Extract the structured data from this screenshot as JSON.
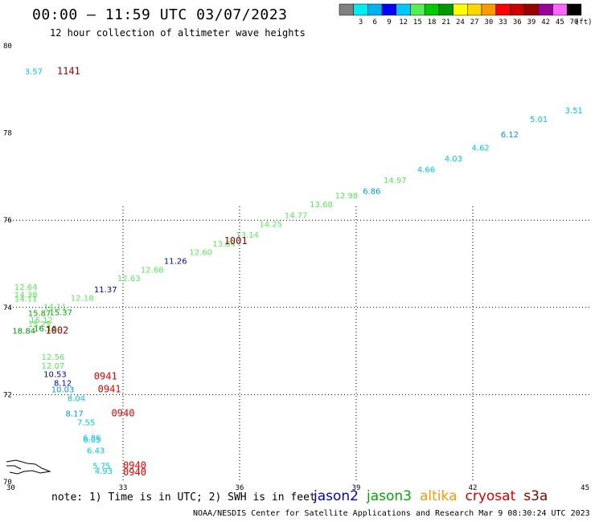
{
  "title": "00:00 – 11:59 UTC 03/07/2023",
  "subtitle": "12 hour collection of altimeter wave heights",
  "note": "note: 1) Time is in UTC; 2) SWH is in feet",
  "footer": "NOAA/NESDIS Center for Satellite Applications and Research    Mar  9 08:30:24 UTC 2023",
  "satellites": [
    {
      "name": "jason2",
      "color": "#0000dd"
    },
    {
      "name": "jason3",
      "color": "#00aa00"
    },
    {
      "name": "altika",
      "color": "#ff9900"
    },
    {
      "name": "cryosat",
      "color": "#dd0000"
    },
    {
      "name": "s3a",
      "color": "#880000"
    }
  ],
  "legend": {
    "unit": "(ft)",
    "bins": [
      {
        "label": "",
        "color": "#808080"
      },
      {
        "label": "3",
        "color": "#00eeee"
      },
      {
        "label": "6",
        "color": "#00b2ee"
      },
      {
        "label": "9",
        "color": "#0000ff"
      },
      {
        "label": "12",
        "color": "#00c8ff"
      },
      {
        "label": "15",
        "color": "#55ee55"
      },
      {
        "label": "18",
        "color": "#00cc00"
      },
      {
        "label": "21",
        "color": "#009900"
      },
      {
        "label": "24",
        "color": "#ffff00"
      },
      {
        "label": "27",
        "color": "#ffd700"
      },
      {
        "label": "30",
        "color": "#ff9900"
      },
      {
        "label": "33",
        "color": "#ff0000"
      },
      {
        "label": "36",
        "color": "#cc0000"
      },
      {
        "label": "39",
        "color": "#990000"
      },
      {
        "label": "42",
        "color": "#990099"
      },
      {
        "label": "45",
        "color": "#ff66ff"
      },
      {
        "label": "70",
        "color": "#000000"
      }
    ]
  },
  "chart_data": {
    "type": "scatter",
    "title": "00:00 – 11:59 UTC 03/07/2023",
    "x_ticks": [
      "30",
      "33",
      "36",
      "39",
      "42",
      "45"
    ],
    "y_ticks": [
      "70",
      "72",
      "74",
      "76",
      "78",
      "80"
    ],
    "xlim": [
      30,
      45
    ],
    "ylim": [
      70,
      80
    ],
    "grid": true,
    "points": [
      {
        "x": 30.7,
        "y": 79.35,
        "label": "3.57",
        "color": "#00c8e8"
      },
      {
        "x": 44.6,
        "y": 78.45,
        "label": "3.51",
        "color": "#00c8e8"
      },
      {
        "x": 43.7,
        "y": 78.25,
        "label": "5.01",
        "color": "#00c8e8"
      },
      {
        "x": 42.95,
        "y": 77.9,
        "label": "6.12",
        "color": "#0099dd"
      },
      {
        "x": 42.2,
        "y": 77.6,
        "label": "4.62",
        "color": "#00c8e8"
      },
      {
        "x": 41.5,
        "y": 77.35,
        "label": "4.03",
        "color": "#00c8e8"
      },
      {
        "x": 40.8,
        "y": 77.1,
        "label": "4.66",
        "color": "#00c8e8"
      },
      {
        "x": 40.0,
        "y": 76.85,
        "label": "14.97",
        "color": "#55ee55"
      },
      {
        "x": 39.4,
        "y": 76.6,
        "label": "6.86",
        "color": "#0099dd"
      },
      {
        "x": 38.75,
        "y": 76.5,
        "label": "12.98",
        "color": "#55ee55"
      },
      {
        "x": 38.1,
        "y": 76.3,
        "label": "13.68",
        "color": "#55ee55"
      },
      {
        "x": 37.45,
        "y": 76.05,
        "label": "14.77",
        "color": "#55ee55"
      },
      {
        "x": 36.8,
        "y": 75.85,
        "label": "14.25",
        "color": "#55ee55"
      },
      {
        "x": 36.2,
        "y": 75.6,
        "label": "13.14",
        "color": "#55ee55"
      },
      {
        "x": 35.6,
        "y": 75.4,
        "label": "13.84",
        "color": "#55ee55"
      },
      {
        "x": 35.0,
        "y": 75.2,
        "label": "12.60",
        "color": "#55ee55"
      },
      {
        "x": 34.35,
        "y": 75.0,
        "label": "11.26",
        "color": "#0000cc"
      },
      {
        "x": 33.75,
        "y": 74.8,
        "label": "12.68",
        "color": "#55ee55"
      },
      {
        "x": 33.15,
        "y": 74.6,
        "label": "12.63",
        "color": "#55ee55"
      },
      {
        "x": 32.55,
        "y": 74.35,
        "label": "11.37",
        "color": "#0000cc"
      },
      {
        "x": 31.95,
        "y": 74.15,
        "label": "12.18",
        "color": "#55ee55"
      },
      {
        "x": 31.25,
        "y": 73.95,
        "label": "14.11",
        "color": "#55ee55"
      },
      {
        "x": 30.5,
        "y": 74.4,
        "label": "12.64",
        "color": "#55ee55"
      },
      {
        "x": 30.5,
        "y": 74.23,
        "label": "14.38",
        "color": "#55ee55"
      },
      {
        "x": 30.5,
        "y": 74.13,
        "label": "14.11",
        "color": "#55ee55"
      },
      {
        "x": 30.85,
        "y": 73.8,
        "label": "15.87",
        "color": "#00aa00"
      },
      {
        "x": 31.4,
        "y": 73.82,
        "label": "15.37",
        "color": "#00aa00"
      },
      {
        "x": 30.9,
        "y": 73.65,
        "label": "16.12",
        "color": "#55ee55"
      },
      {
        "x": 30.85,
        "y": 73.55,
        "label": "15.25",
        "color": "#55ee55"
      },
      {
        "x": 30.45,
        "y": 73.4,
        "label": "18.84",
        "color": "#009900"
      },
      {
        "x": 31.0,
        "y": 73.45,
        "label": "16.16",
        "color": "#009900"
      },
      {
        "x": 31.2,
        "y": 72.8,
        "label": "12.56",
        "color": "#55ee55"
      },
      {
        "x": 31.2,
        "y": 72.6,
        "label": "12.07",
        "color": "#55ee55"
      },
      {
        "x": 31.25,
        "y": 72.4,
        "label": "10.53",
        "color": "#0000cc"
      },
      {
        "x": 31.45,
        "y": 72.2,
        "label": "8.12",
        "color": "#0000cc"
      },
      {
        "x": 31.45,
        "y": 72.05,
        "label": "10.03",
        "color": "#0099dd"
      },
      {
        "x": 31.8,
        "y": 71.85,
        "label": "8.04",
        "color": "#00c8e8"
      },
      {
        "x": 31.75,
        "y": 71.5,
        "label": "8.17",
        "color": "#0099dd"
      },
      {
        "x": 32.05,
        "y": 71.3,
        "label": "7.55",
        "color": "#00c8e8"
      },
      {
        "x": 32.2,
        "y": 70.95,
        "label": "6.86",
        "color": "#00c8e8"
      },
      {
        "x": 32.2,
        "y": 70.9,
        "label": "6.05",
        "color": "#00c8e8"
      },
      {
        "x": 32.3,
        "y": 70.65,
        "label": "6.43",
        "color": "#00c8e8"
      },
      {
        "x": 32.45,
        "y": 70.3,
        "label": "5.75",
        "color": "#00c8e8"
      },
      {
        "x": 32.5,
        "y": 70.18,
        "label": "4.93",
        "color": "#00c8e8"
      }
    ],
    "passes": [
      {
        "x": 31.6,
        "y": 79.35,
        "label": "1141",
        "color": "#880000"
      },
      {
        "x": 35.9,
        "y": 75.45,
        "label": "1001",
        "color": "#880000"
      },
      {
        "x": 31.3,
        "y": 73.4,
        "label": "1002",
        "color": "#880000"
      },
      {
        "x": 32.55,
        "y": 72.35,
        "label": "0941",
        "color": "#ee0000"
      },
      {
        "x": 32.65,
        "y": 72.05,
        "label": "0941",
        "color": "#ee0000"
      },
      {
        "x": 33.0,
        "y": 71.5,
        "label": "0940",
        "color": "#ee0000"
      },
      {
        "x": 33.3,
        "y": 70.3,
        "label": "0940",
        "color": "#ee0000"
      },
      {
        "x": 33.3,
        "y": 70.15,
        "label": "0940",
        "color": "#ee0000"
      }
    ]
  }
}
